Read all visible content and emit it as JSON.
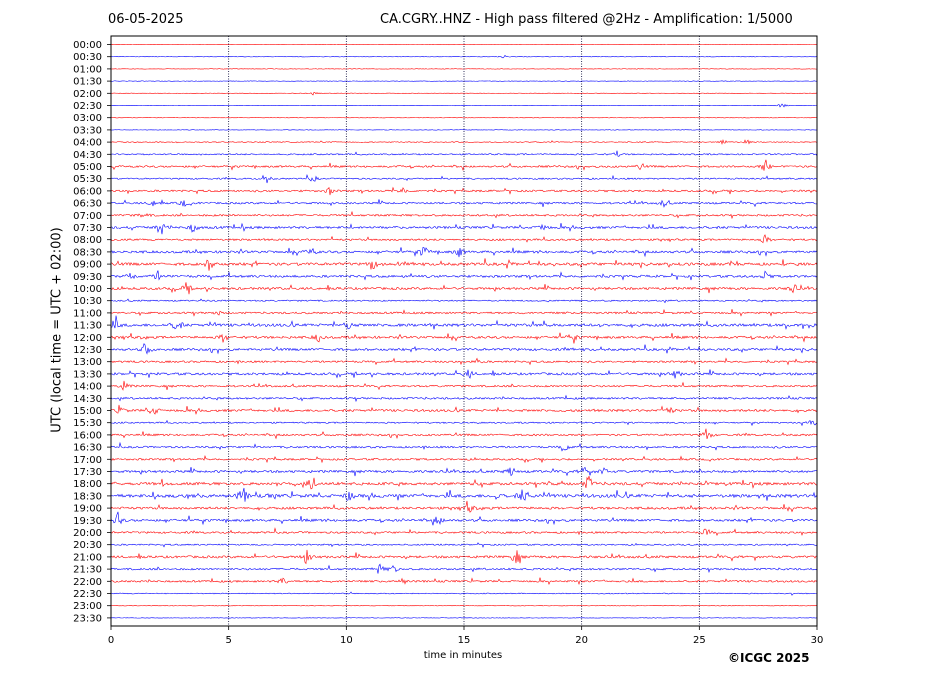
{
  "header": {
    "date": "06-05-2025",
    "title": "CA.CGRY..HNZ - High pass filtered @2Hz - Amplification: 1/5000",
    "copyright": "©ICGC 2025"
  },
  "chart_data": {
    "type": "line",
    "title": "CA.CGRY..HNZ - High pass filtered @2Hz - Amplification: 1/5000",
    "xlabel": "time in minutes",
    "ylabel": "UTC (local time = UTC + 02:00)",
    "xlim": [
      0,
      30
    ],
    "x_ticks": [
      "0",
      "5",
      "10",
      "15",
      "20",
      "25",
      "30"
    ],
    "vertical_gridlines_at": [
      5,
      10,
      15,
      20,
      25
    ],
    "colors": {
      "even_rows": "#ff0000",
      "odd_rows": "#0000ff"
    },
    "rows": [
      "00:00",
      "00:30",
      "01:00",
      "01:30",
      "02:00",
      "02:30",
      "03:00",
      "03:30",
      "04:00",
      "04:30",
      "05:00",
      "05:30",
      "06:00",
      "06:30",
      "07:00",
      "07:30",
      "08:00",
      "08:30",
      "09:00",
      "09:30",
      "10:00",
      "10:30",
      "11:00",
      "11:30",
      "12:00",
      "12:30",
      "13:00",
      "13:30",
      "14:00",
      "14:30",
      "15:00",
      "15:30",
      "16:00",
      "16:30",
      "17:00",
      "17:30",
      "18:00",
      "18:30",
      "19:00",
      "19:30",
      "20:00",
      "20:30",
      "21:00",
      "21:30",
      "22:00",
      "22:30",
      "23:00",
      "23:30"
    ],
    "activity": [
      0,
      0,
      0,
      0,
      0,
      0,
      0,
      0,
      1,
      2,
      3,
      2,
      3,
      3,
      3,
      4,
      3,
      4,
      5,
      4,
      4,
      2,
      3,
      5,
      4,
      4,
      3,
      4,
      3,
      3,
      4,
      2,
      3,
      3,
      3,
      4,
      5,
      6,
      4,
      4,
      3,
      2,
      4,
      3,
      3,
      1,
      0,
      0
    ],
    "events": [
      {
        "row": "00:30",
        "minute": 16.7,
        "amp": 2
      },
      {
        "row": "02:00",
        "minute": 8.6,
        "amp": 2
      },
      {
        "row": "02:30",
        "minute": 28.5,
        "amp": 3
      },
      {
        "row": "04:00",
        "minute": 26.0,
        "amp": 3
      },
      {
        "row": "04:00",
        "minute": 27.0,
        "amp": 3
      },
      {
        "row": "04:30",
        "minute": 21.5,
        "amp": 3
      },
      {
        "row": "05:00",
        "minute": 27.8,
        "amp": 8
      },
      {
        "row": "05:00",
        "minute": 22.5,
        "amp": 3
      },
      {
        "row": "05:30",
        "minute": 6.6,
        "amp": 5
      },
      {
        "row": "05:30",
        "minute": 8.6,
        "amp": 4
      },
      {
        "row": "06:00",
        "minute": 9.3,
        "amp": 4
      },
      {
        "row": "06:00",
        "minute": 12.4,
        "amp": 4
      },
      {
        "row": "06:30",
        "minute": 3.1,
        "amp": 4
      },
      {
        "row": "06:30",
        "minute": 1.8,
        "amp": 4
      },
      {
        "row": "06:30",
        "minute": 23.5,
        "amp": 4
      },
      {
        "row": "07:00",
        "minute": 1.4,
        "amp": 4
      },
      {
        "row": "07:30",
        "minute": 2.1,
        "amp": 11
      },
      {
        "row": "07:30",
        "minute": 3.5,
        "amp": 6
      },
      {
        "row": "07:30",
        "minute": 18.3,
        "amp": 5
      },
      {
        "row": "08:00",
        "minute": 27.8,
        "amp": 5
      },
      {
        "row": "08:30",
        "minute": 13.3,
        "amp": 7
      },
      {
        "row": "08:30",
        "minute": 14.8,
        "amp": 6
      },
      {
        "row": "08:30",
        "minute": 8.5,
        "amp": 5
      },
      {
        "row": "09:00",
        "minute": 4.2,
        "amp": 8
      },
      {
        "row": "09:00",
        "minute": 11.1,
        "amp": 7
      },
      {
        "row": "09:30",
        "minute": 0.8,
        "amp": 5
      },
      {
        "row": "09:30",
        "minute": 2.0,
        "amp": 5
      },
      {
        "row": "09:30",
        "minute": 27.8,
        "amp": 5
      },
      {
        "row": "10:00",
        "minute": 3.2,
        "amp": 6
      },
      {
        "row": "10:00",
        "minute": 29.0,
        "amp": 5
      },
      {
        "row": "11:00",
        "minute": 4.5,
        "amp": 3
      },
      {
        "row": "11:30",
        "minute": 2.8,
        "amp": 9
      },
      {
        "row": "11:30",
        "minute": 0.2,
        "amp": 5
      },
      {
        "row": "11:30",
        "minute": 10.1,
        "amp": 5
      },
      {
        "row": "12:00",
        "minute": 4.8,
        "amp": 6
      },
      {
        "row": "12:00",
        "minute": 8.8,
        "amp": 5
      },
      {
        "row": "12:00",
        "minute": 19.6,
        "amp": 5
      },
      {
        "row": "12:30",
        "minute": 1.5,
        "amp": 7
      },
      {
        "row": "13:00",
        "minute": 15.6,
        "amp": 4
      },
      {
        "row": "13:30",
        "minute": 15.2,
        "amp": 5
      },
      {
        "row": "13:30",
        "minute": 24.0,
        "amp": 5
      },
      {
        "row": "14:00",
        "minute": 0.6,
        "amp": 7
      },
      {
        "row": "15:00",
        "minute": 0.4,
        "amp": 5
      },
      {
        "row": "15:00",
        "minute": 1.8,
        "amp": 7
      },
      {
        "row": "15:00",
        "minute": 23.7,
        "amp": 5
      },
      {
        "row": "15:30",
        "minute": 29.8,
        "amp": 5
      },
      {
        "row": "16:00",
        "minute": 25.3,
        "amp": 8
      },
      {
        "row": "16:30",
        "minute": 19.3,
        "amp": 5
      },
      {
        "row": "17:30",
        "minute": 17.0,
        "amp": 6
      },
      {
        "row": "17:30",
        "minute": 20.1,
        "amp": 6
      },
      {
        "row": "17:30",
        "minute": 20.9,
        "amp": 5
      },
      {
        "row": "18:00",
        "minute": 20.3,
        "amp": 9
      },
      {
        "row": "18:00",
        "minute": 8.5,
        "amp": 5
      },
      {
        "row": "18:30",
        "minute": 5.6,
        "amp": 11
      },
      {
        "row": "18:30",
        "minute": 17.5,
        "amp": 8
      },
      {
        "row": "18:30",
        "minute": 10.1,
        "amp": 6
      },
      {
        "row": "19:00",
        "minute": 15.2,
        "amp": 6
      },
      {
        "row": "19:30",
        "minute": 0.3,
        "amp": 8
      },
      {
        "row": "19:30",
        "minute": 13.9,
        "amp": 6
      },
      {
        "row": "20:00",
        "minute": 25.3,
        "amp": 5
      },
      {
        "row": "21:00",
        "minute": 8.3,
        "amp": 8
      },
      {
        "row": "21:00",
        "minute": 17.2,
        "amp": 9
      },
      {
        "row": "21:30",
        "minute": 11.4,
        "amp": 6
      },
      {
        "row": "21:30",
        "minute": 12.0,
        "amp": 5
      },
      {
        "row": "22:00",
        "minute": 7.3,
        "amp": 4
      },
      {
        "row": "22:00",
        "minute": 12.4,
        "amp": 4
      }
    ]
  }
}
